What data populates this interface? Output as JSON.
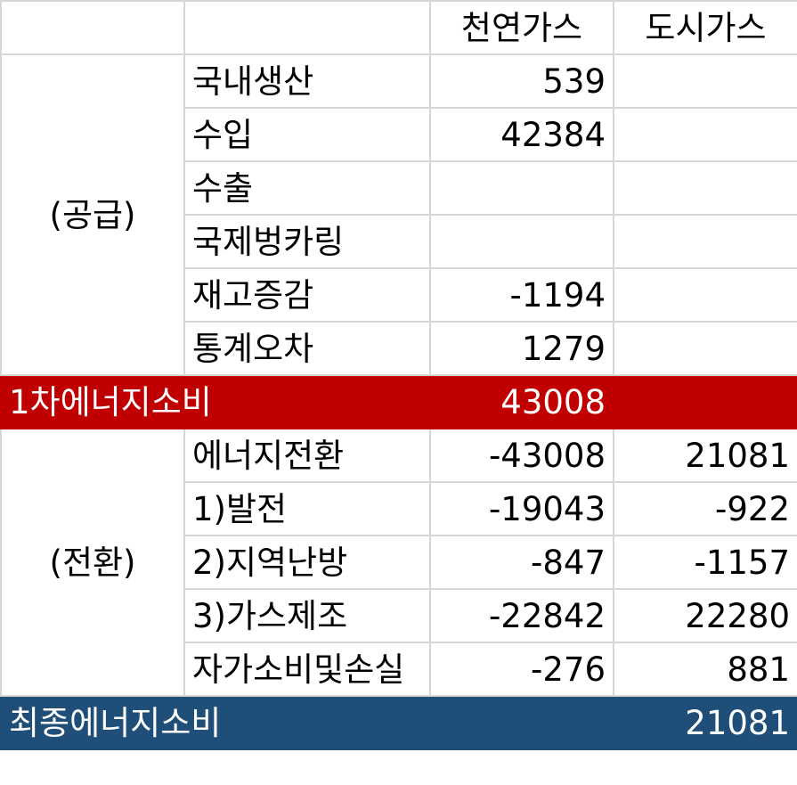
{
  "header": {
    "col_natural_gas": "천연가스",
    "col_city_gas": "도시가스"
  },
  "supply": {
    "group_label": "(공급)",
    "rows": [
      {
        "label": "국내생산",
        "natural_gas": "539",
        "city_gas": ""
      },
      {
        "label": "수입",
        "natural_gas": "42384",
        "city_gas": ""
      },
      {
        "label": "수출",
        "natural_gas": "",
        "city_gas": ""
      },
      {
        "label": "국제벙카링",
        "natural_gas": "",
        "city_gas": ""
      },
      {
        "label": "재고증감",
        "natural_gas": "-1194",
        "city_gas": ""
      },
      {
        "label": "통계오차",
        "natural_gas": "1279",
        "city_gas": ""
      }
    ]
  },
  "primary_total": {
    "label": "1차에너지소비",
    "natural_gas": "43008",
    "city_gas": ""
  },
  "transform": {
    "group_label": "(전환)",
    "rows": [
      {
        "label": "에너지전환",
        "natural_gas": "-43008",
        "city_gas": "21081"
      },
      {
        "label": "1)발전",
        "natural_gas": "-19043",
        "city_gas": "-922"
      },
      {
        "label": "2)지역난방",
        "natural_gas": "-847",
        "city_gas": "-1157"
      },
      {
        "label": "3)가스제조",
        "natural_gas": "-22842",
        "city_gas": "22280"
      },
      {
        "label": "자가소비및손실",
        "natural_gas": "-276",
        "city_gas": "881"
      }
    ]
  },
  "final_total": {
    "label": "최종에너지소비",
    "natural_gas": "",
    "city_gas": "21081"
  }
}
